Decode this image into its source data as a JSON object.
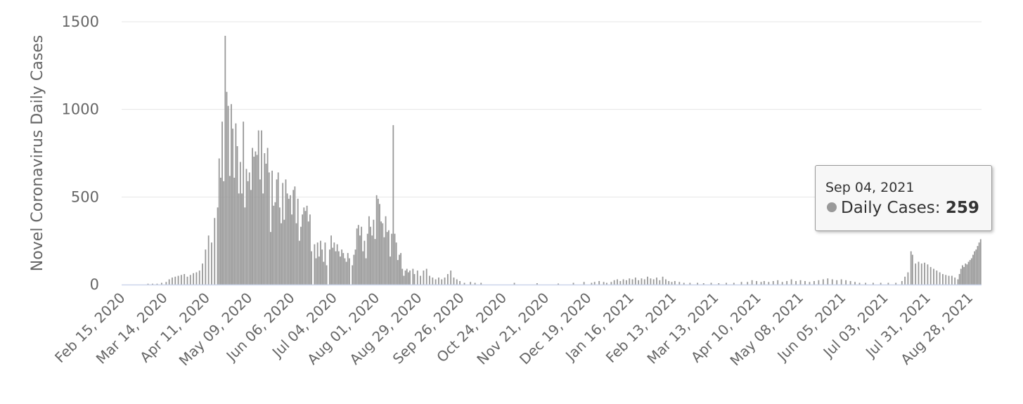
{
  "colors": {
    "bar": "#999999",
    "grid": "#e6e6e6",
    "axis": "#ccd6eb",
    "text": "#666666"
  },
  "tooltip": {
    "date": "Sep 04, 2021",
    "series_label": "Daily Cases:",
    "value": "259"
  },
  "chart_data": {
    "type": "bar",
    "title": "",
    "ylabel": "Novel Coronavirus Daily Cases",
    "xlabel": "",
    "ylim": [
      0,
      1500
    ],
    "yticks": [
      0,
      500,
      1000,
      1500
    ],
    "grid": true,
    "legend": "none",
    "x_start": "2020-02-15",
    "x_end": "2021-09-04",
    "xticks": [
      "Feb 15, 2020",
      "Mar 14, 2020",
      "Apr 11, 2020",
      "May 09, 2020",
      "Jun 06, 2020",
      "Jul 04, 2020",
      "Aug 01, 2020",
      "Aug 29, 2020",
      "Sep 26, 2020",
      "Oct 24, 2020",
      "Nov 21, 2020",
      "Dec 19, 2020",
      "Jan 16, 2021",
      "Feb 13, 2021",
      "Mar 13, 2021",
      "Apr 10, 2021",
      "May 08, 2021",
      "Jun 05, 2021",
      "Jul 03, 2021",
      "Jul 31, 2021",
      "Aug 28, 2021"
    ],
    "series": [
      {
        "name": "Daily Cases",
        "points": [
          [
            "2020-03-03",
            5
          ],
          [
            "2020-03-06",
            5
          ],
          [
            "2020-03-09",
            5
          ],
          [
            "2020-03-12",
            10
          ],
          [
            "2020-03-15",
            15
          ],
          [
            "2020-03-17",
            30
          ],
          [
            "2020-03-19",
            40
          ],
          [
            "2020-03-21",
            45
          ],
          [
            "2020-03-23",
            50
          ],
          [
            "2020-03-25",
            55
          ],
          [
            "2020-03-27",
            60
          ],
          [
            "2020-03-29",
            45
          ],
          [
            "2020-03-31",
            55
          ],
          [
            "2020-04-02",
            65
          ],
          [
            "2020-04-04",
            70
          ],
          [
            "2020-04-06",
            80
          ],
          [
            "2020-04-08",
            120
          ],
          [
            "2020-04-10",
            200
          ],
          [
            "2020-04-12",
            280
          ],
          [
            "2020-04-14",
            240
          ],
          [
            "2020-04-16",
            380
          ],
          [
            "2020-04-18",
            440
          ],
          [
            "2020-04-19",
            720
          ],
          [
            "2020-04-20",
            610
          ],
          [
            "2020-04-21",
            930
          ],
          [
            "2020-04-22",
            590
          ],
          [
            "2020-04-23",
            1420
          ],
          [
            "2020-04-24",
            1100
          ],
          [
            "2020-04-25",
            1020
          ],
          [
            "2020-04-26",
            620
          ],
          [
            "2020-04-27",
            1030
          ],
          [
            "2020-04-28",
            890
          ],
          [
            "2020-04-29",
            610
          ],
          [
            "2020-04-30",
            920
          ],
          [
            "2020-05-01",
            790
          ],
          [
            "2020-05-02",
            520
          ],
          [
            "2020-05-03",
            700
          ],
          [
            "2020-05-04",
            520
          ],
          [
            "2020-05-05",
            930
          ],
          [
            "2020-05-06",
            440
          ],
          [
            "2020-05-07",
            660
          ],
          [
            "2020-05-08",
            590
          ],
          [
            "2020-05-09",
            640
          ],
          [
            "2020-05-10",
            540
          ],
          [
            "2020-05-11",
            780
          ],
          [
            "2020-05-12",
            730
          ],
          [
            "2020-05-13",
            760
          ],
          [
            "2020-05-14",
            740
          ],
          [
            "2020-05-15",
            880
          ],
          [
            "2020-05-16",
            600
          ],
          [
            "2020-05-17",
            880
          ],
          [
            "2020-05-18",
            520
          ],
          [
            "2020-05-19",
            750
          ],
          [
            "2020-05-20",
            690
          ],
          [
            "2020-05-21",
            780
          ],
          [
            "2020-05-22",
            640
          ],
          [
            "2020-05-23",
            300
          ],
          [
            "2020-05-24",
            650
          ],
          [
            "2020-05-25",
            450
          ],
          [
            "2020-05-26",
            470
          ],
          [
            "2020-05-27",
            600
          ],
          [
            "2020-05-28",
            640
          ],
          [
            "2020-05-29",
            440
          ],
          [
            "2020-05-30",
            350
          ],
          [
            "2020-05-31",
            580
          ],
          [
            "2020-06-01",
            370
          ],
          [
            "2020-06-02",
            600
          ],
          [
            "2020-06-03",
            520
          ],
          [
            "2020-06-04",
            490
          ],
          [
            "2020-06-05",
            510
          ],
          [
            "2020-06-06",
            400
          ],
          [
            "2020-06-07",
            540
          ],
          [
            "2020-06-08",
            560
          ],
          [
            "2020-06-09",
            350
          ],
          [
            "2020-06-10",
            490
          ],
          [
            "2020-06-11",
            250
          ],
          [
            "2020-06-12",
            330
          ],
          [
            "2020-06-13",
            400
          ],
          [
            "2020-06-14",
            440
          ],
          [
            "2020-06-15",
            420
          ],
          [
            "2020-06-16",
            450
          ],
          [
            "2020-06-17",
            360
          ],
          [
            "2020-06-18",
            400
          ],
          [
            "2020-06-19",
            190
          ],
          [
            "2020-06-21",
            230
          ],
          [
            "2020-06-22",
            150
          ],
          [
            "2020-06-23",
            240
          ],
          [
            "2020-06-24",
            160
          ],
          [
            "2020-06-25",
            250
          ],
          [
            "2020-06-26",
            200
          ],
          [
            "2020-06-27",
            130
          ],
          [
            "2020-06-28",
            240
          ],
          [
            "2020-06-29",
            110
          ],
          [
            "2020-07-01",
            200
          ],
          [
            "2020-07-02",
            280
          ],
          [
            "2020-07-03",
            210
          ],
          [
            "2020-07-04",
            240
          ],
          [
            "2020-07-05",
            190
          ],
          [
            "2020-07-06",
            230
          ],
          [
            "2020-07-07",
            190
          ],
          [
            "2020-07-08",
            160
          ],
          [
            "2020-07-09",
            200
          ],
          [
            "2020-07-10",
            180
          ],
          [
            "2020-07-11",
            150
          ],
          [
            "2020-07-12",
            130
          ],
          [
            "2020-07-13",
            180
          ],
          [
            "2020-07-14",
            150
          ],
          [
            "2020-07-16",
            110
          ],
          [
            "2020-07-17",
            170
          ],
          [
            "2020-07-18",
            200
          ],
          [
            "2020-07-19",
            320
          ],
          [
            "2020-07-20",
            340
          ],
          [
            "2020-07-21",
            280
          ],
          [
            "2020-07-22",
            330
          ],
          [
            "2020-07-23",
            190
          ],
          [
            "2020-07-24",
            250
          ],
          [
            "2020-07-25",
            150
          ],
          [
            "2020-07-26",
            290
          ],
          [
            "2020-07-27",
            390
          ],
          [
            "2020-07-28",
            330
          ],
          [
            "2020-07-29",
            280
          ],
          [
            "2020-07-30",
            370
          ],
          [
            "2020-07-31",
            260
          ],
          [
            "2020-08-01",
            510
          ],
          [
            "2020-08-02",
            490
          ],
          [
            "2020-08-03",
            460
          ],
          [
            "2020-08-04",
            360
          ],
          [
            "2020-08-05",
            350
          ],
          [
            "2020-08-06",
            270
          ],
          [
            "2020-08-07",
            390
          ],
          [
            "2020-08-08",
            300
          ],
          [
            "2020-08-09",
            310
          ],
          [
            "2020-08-10",
            160
          ],
          [
            "2020-08-11",
            290
          ],
          [
            "2020-08-12",
            910
          ],
          [
            "2020-08-13",
            290
          ],
          [
            "2020-08-14",
            240
          ],
          [
            "2020-08-15",
            140
          ],
          [
            "2020-08-16",
            170
          ],
          [
            "2020-08-17",
            180
          ],
          [
            "2020-08-18",
            90
          ],
          [
            "2020-08-19",
            50
          ],
          [
            "2020-08-20",
            80
          ],
          [
            "2020-08-21",
            90
          ],
          [
            "2020-08-22",
            70
          ],
          [
            "2020-08-23",
            80
          ],
          [
            "2020-08-25",
            90
          ],
          [
            "2020-08-26",
            60
          ],
          [
            "2020-08-28",
            80
          ],
          [
            "2020-08-30",
            50
          ],
          [
            "2020-09-01",
            80
          ],
          [
            "2020-09-03",
            90
          ],
          [
            "2020-09-05",
            50
          ],
          [
            "2020-09-07",
            40
          ],
          [
            "2020-09-09",
            30
          ],
          [
            "2020-09-11",
            40
          ],
          [
            "2020-09-13",
            30
          ],
          [
            "2020-09-15",
            40
          ],
          [
            "2020-09-17",
            60
          ],
          [
            "2020-09-19",
            80
          ],
          [
            "2020-09-21",
            40
          ],
          [
            "2020-09-23",
            30
          ],
          [
            "2020-09-25",
            20
          ],
          [
            "2020-09-28",
            10
          ],
          [
            "2020-10-02",
            15
          ],
          [
            "2020-10-05",
            10
          ],
          [
            "2020-10-09",
            10
          ],
          [
            "2020-10-31",
            10
          ],
          [
            "2020-11-15",
            8
          ],
          [
            "2020-11-29",
            6
          ],
          [
            "2020-12-09",
            10
          ],
          [
            "2020-12-16",
            15
          ],
          [
            "2020-12-21",
            10
          ],
          [
            "2020-12-23",
            15
          ],
          [
            "2020-12-26",
            20
          ],
          [
            "2020-12-29",
            15
          ],
          [
            "2020-12-31",
            10
          ],
          [
            "2021-01-03",
            15
          ],
          [
            "2021-01-05",
            25
          ],
          [
            "2021-01-07",
            30
          ],
          [
            "2021-01-09",
            20
          ],
          [
            "2021-01-11",
            30
          ],
          [
            "2021-01-13",
            25
          ],
          [
            "2021-01-15",
            35
          ],
          [
            "2021-01-17",
            30
          ],
          [
            "2021-01-19",
            40
          ],
          [
            "2021-01-21",
            25
          ],
          [
            "2021-01-23",
            35
          ],
          [
            "2021-01-25",
            30
          ],
          [
            "2021-01-27",
            45
          ],
          [
            "2021-01-29",
            35
          ],
          [
            "2021-01-31",
            30
          ],
          [
            "2021-02-02",
            40
          ],
          [
            "2021-02-04",
            25
          ],
          [
            "2021-02-06",
            45
          ],
          [
            "2021-02-08",
            30
          ],
          [
            "2021-02-10",
            20
          ],
          [
            "2021-02-12",
            15
          ],
          [
            "2021-02-14",
            20
          ],
          [
            "2021-02-17",
            15
          ],
          [
            "2021-02-20",
            10
          ],
          [
            "2021-02-24",
            10
          ],
          [
            "2021-03-01",
            10
          ],
          [
            "2021-03-05",
            8
          ],
          [
            "2021-03-10",
            10
          ],
          [
            "2021-03-15",
            8
          ],
          [
            "2021-03-20",
            10
          ],
          [
            "2021-03-25",
            10
          ],
          [
            "2021-03-30",
            15
          ],
          [
            "2021-04-03",
            15
          ],
          [
            "2021-04-06",
            25
          ],
          [
            "2021-04-09",
            20
          ],
          [
            "2021-04-12",
            15
          ],
          [
            "2021-04-14",
            20
          ],
          [
            "2021-04-17",
            15
          ],
          [
            "2021-04-20",
            20
          ],
          [
            "2021-04-23",
            25
          ],
          [
            "2021-04-26",
            15
          ],
          [
            "2021-04-29",
            20
          ],
          [
            "2021-05-02",
            30
          ],
          [
            "2021-05-05",
            20
          ],
          [
            "2021-05-08",
            25
          ],
          [
            "2021-05-11",
            20
          ],
          [
            "2021-05-14",
            15
          ],
          [
            "2021-05-17",
            20
          ],
          [
            "2021-05-20",
            25
          ],
          [
            "2021-05-23",
            30
          ],
          [
            "2021-05-26",
            35
          ],
          [
            "2021-05-29",
            30
          ],
          [
            "2021-06-01",
            25
          ],
          [
            "2021-06-04",
            30
          ],
          [
            "2021-06-07",
            25
          ],
          [
            "2021-06-10",
            20
          ],
          [
            "2021-06-13",
            15
          ],
          [
            "2021-06-16",
            10
          ],
          [
            "2021-06-20",
            10
          ],
          [
            "2021-06-25",
            10
          ],
          [
            "2021-06-30",
            10
          ],
          [
            "2021-07-05",
            10
          ],
          [
            "2021-07-10",
            10
          ],
          [
            "2021-07-14",
            20
          ],
          [
            "2021-07-16",
            45
          ],
          [
            "2021-07-18",
            70
          ],
          [
            "2021-07-20",
            190
          ],
          [
            "2021-07-21",
            170
          ],
          [
            "2021-07-23",
            120
          ],
          [
            "2021-07-25",
            130
          ],
          [
            "2021-07-27",
            120
          ],
          [
            "2021-07-29",
            125
          ],
          [
            "2021-07-31",
            115
          ],
          [
            "2021-08-02",
            100
          ],
          [
            "2021-08-04",
            90
          ],
          [
            "2021-08-06",
            80
          ],
          [
            "2021-08-08",
            70
          ],
          [
            "2021-08-10",
            60
          ],
          [
            "2021-08-12",
            55
          ],
          [
            "2021-08-14",
            50
          ],
          [
            "2021-08-16",
            50
          ],
          [
            "2021-08-18",
            40
          ],
          [
            "2021-08-20",
            30
          ],
          [
            "2021-08-21",
            60
          ],
          [
            "2021-08-22",
            90
          ],
          [
            "2021-08-23",
            110
          ],
          [
            "2021-08-24",
            100
          ],
          [
            "2021-08-25",
            120
          ],
          [
            "2021-08-26",
            115
          ],
          [
            "2021-08-27",
            130
          ],
          [
            "2021-08-28",
            140
          ],
          [
            "2021-08-29",
            150
          ],
          [
            "2021-08-30",
            170
          ],
          [
            "2021-08-31",
            190
          ],
          [
            "2021-09-01",
            200
          ],
          [
            "2021-09-02",
            220
          ],
          [
            "2021-09-03",
            240
          ],
          [
            "2021-09-04",
            259
          ]
        ]
      }
    ]
  }
}
